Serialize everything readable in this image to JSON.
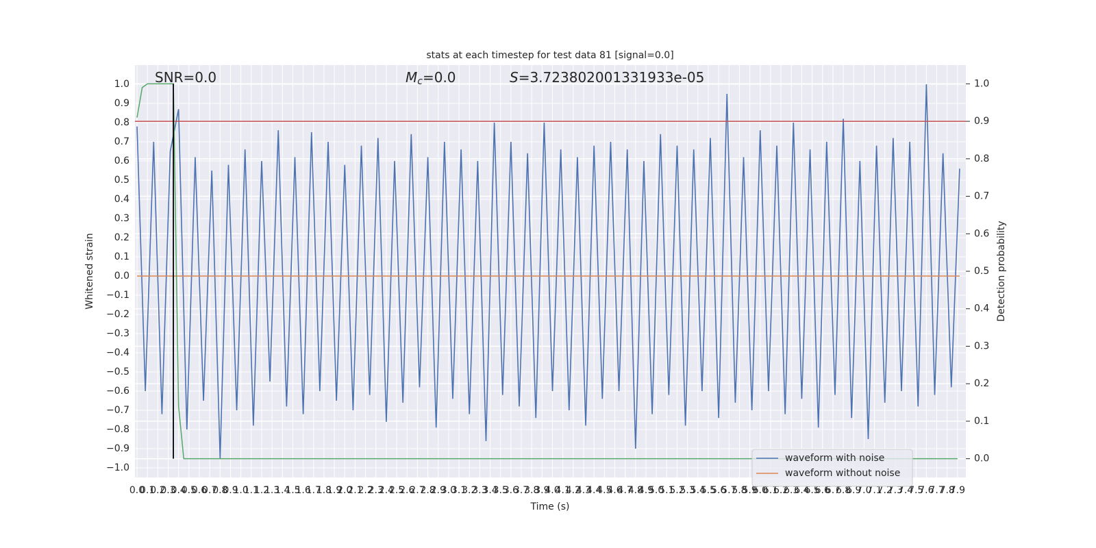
{
  "chart_data": {
    "type": "line",
    "title": "stats at each timestep for test data 81 [signal=0.0]",
    "xlabel": "Time (s)",
    "ylabel": "Whitened strain",
    "y2label": "Detection probability",
    "annotations": [
      {
        "text": "SNR=0.0"
      },
      {
        "symbol": "M",
        "subscript": "c",
        "text": "=0.0"
      },
      {
        "symbol": "S",
        "text": "=3.723802001331933e-05"
      }
    ],
    "xlim": [
      -0.02,
      7.98
    ],
    "ylim": [
      -1.05,
      1.1
    ],
    "y2lim": [
      -0.05,
      1.05
    ],
    "xticks": [
      {
        "value": 0,
        "label": "0.0"
      },
      0.1,
      0.2,
      0.3,
      0.4,
      0.5,
      0.6,
      0.7,
      0.8,
      0.9,
      {
        "value": 1,
        "label": "1.0"
      },
      1.1,
      1.2,
      1.3,
      1.4,
      1.5,
      1.6,
      1.7,
      1.8,
      1.9,
      {
        "value": 2,
        "label": "2.0"
      },
      2.1,
      2.2,
      2.3,
      2.4,
      2.5,
      2.6,
      2.7,
      2.8,
      2.9,
      {
        "value": 3,
        "label": "3.0"
      },
      3.1,
      3.2,
      3.3,
      3.4,
      3.5,
      3.6,
      3.7,
      3.8,
      3.9,
      {
        "value": 4,
        "label": "4.0"
      },
      4.1,
      4.2,
      4.3,
      4.4,
      4.5,
      4.6,
      4.7,
      4.8,
      4.9,
      {
        "value": 5,
        "label": "5.0"
      },
      5.1,
      5.2,
      5.3,
      5.4,
      5.5,
      5.6,
      5.7,
      5.8,
      5.9,
      {
        "value": 6,
        "label": "6.0"
      },
      6.1,
      6.2,
      6.3,
      6.4,
      6.5,
      6.6,
      6.7,
      6.8,
      6.9,
      {
        "value": 7,
        "label": "7.0"
      },
      7.1,
      7.2,
      7.3,
      7.4,
      7.5,
      7.6,
      7.7,
      7.8,
      7.9
    ],
    "yticks": [
      {
        "value": -1,
        "label": "−1.0"
      },
      {
        "value": -0.9,
        "label": "−0.9"
      },
      {
        "value": -0.8,
        "label": "−0.8"
      },
      {
        "value": -0.7,
        "label": "−0.7"
      },
      {
        "value": -0.6,
        "label": "−0.6"
      },
      {
        "value": -0.5,
        "label": "−0.5"
      },
      {
        "value": -0.4,
        "label": "−0.4"
      },
      {
        "value": -0.3,
        "label": "−0.3"
      },
      {
        "value": -0.2,
        "label": "−0.2"
      },
      {
        "value": -0.1,
        "label": "−0.1"
      },
      {
        "value": 0,
        "label": "0.0"
      },
      0.1,
      0.2,
      0.3,
      0.4,
      0.5,
      0.6,
      0.7,
      0.8,
      0.9,
      {
        "value": 1,
        "label": "1.0"
      }
    ],
    "y2ticks": [
      {
        "value": 0,
        "label": "0.0"
      },
      0.1,
      0.2,
      0.3,
      0.4,
      0.5,
      0.6,
      0.7,
      0.8,
      0.9,
      {
        "value": 1,
        "label": "1.0"
      }
    ],
    "grid": true,
    "legend": "lower right",
    "series": [
      {
        "name": "waveform with noise",
        "color": "#4c72b0",
        "x": [
          0,
          0.08,
          0.16,
          0.24,
          0.32,
          0.4,
          0.48,
          0.56,
          0.64,
          0.72,
          0.8,
          0.88,
          0.96,
          1.04,
          1.12,
          1.2,
          1.28,
          1.36,
          1.44,
          1.52,
          1.6,
          1.68,
          1.76,
          1.84,
          1.92,
          2,
          2.08,
          2.16,
          2.24,
          2.32,
          2.4,
          2.48,
          2.56,
          2.64,
          2.72,
          2.8,
          2.88,
          2.96,
          3.04,
          3.12,
          3.2,
          3.28,
          3.36,
          3.44,
          3.52,
          3.6,
          3.68,
          3.76,
          3.84,
          3.92,
          4,
          4.08,
          4.16,
          4.24,
          4.32,
          4.4,
          4.48,
          4.56,
          4.64,
          4.72,
          4.8,
          4.88,
          4.96,
          5.04,
          5.12,
          5.2,
          5.28,
          5.36,
          5.44,
          5.52,
          5.6,
          5.68,
          5.76,
          5.84,
          5.92,
          6,
          6.08,
          6.16,
          6.24,
          6.32,
          6.4,
          6.48,
          6.56,
          6.64,
          6.72,
          6.8,
          6.88,
          6.96,
          7.04,
          7.12,
          7.2,
          7.28,
          7.36,
          7.44,
          7.52,
          7.6,
          7.68,
          7.76,
          7.84,
          7.92
        ],
        "values": [
          0.78,
          -0.6,
          0.7,
          -0.72,
          0.65,
          0.87,
          -0.8,
          0.62,
          -0.65,
          0.55,
          -0.95,
          0.58,
          -0.7,
          0.66,
          -0.78,
          0.6,
          -0.55,
          0.76,
          -0.68,
          0.62,
          -0.72,
          0.75,
          -0.6,
          0.7,
          -0.65,
          0.58,
          -0.7,
          0.68,
          -0.62,
          0.72,
          -0.76,
          0.6,
          -0.66,
          0.74,
          -0.58,
          0.62,
          -0.79,
          0.7,
          -0.64,
          0.66,
          -0.72,
          0.6,
          -0.86,
          0.8,
          -0.62,
          0.7,
          -0.68,
          0.64,
          -0.74,
          0.8,
          -0.6,
          0.66,
          -0.7,
          0.62,
          -0.78,
          0.68,
          -0.64,
          0.7,
          -0.6,
          0.66,
          -0.9,
          0.6,
          -0.72,
          0.74,
          -0.62,
          0.68,
          -0.78,
          0.66,
          -0.6,
          0.72,
          -0.74,
          0.95,
          -0.66,
          0.62,
          -0.7,
          0.76,
          -0.6,
          0.68,
          -0.72,
          0.8,
          -0.64,
          0.66,
          -0.79,
          0.7,
          -0.62,
          0.82,
          -0.74,
          0.6,
          -0.85,
          0.68,
          -0.66,
          0.72,
          -0.6,
          0.7,
          -0.68,
          1.0,
          -0.62,
          0.64,
          -0.58,
          0.56
        ]
      },
      {
        "name": "waveform without noise",
        "color": "#dd8452",
        "x": [
          0,
          7.92
        ],
        "values": [
          0,
          0
        ]
      },
      {
        "color": "#55a868",
        "axis": "y2",
        "x": [
          0,
          0.05,
          0.1,
          0.15,
          0.2,
          0.25,
          0.3,
          0.35,
          0.4,
          0.45,
          7.9
        ],
        "values": [
          0.91,
          0.99,
          1.0,
          1.0,
          1.0,
          1.0,
          1.0,
          1.0,
          0.14,
          0.0,
          0.0
        ]
      }
    ],
    "hlines": [
      {
        "value": 0.9,
        "axis": "y2",
        "color": "#c44e52"
      }
    ],
    "vlines": [
      {
        "value": 0.35,
        "from": 0,
        "to": 1,
        "axis": "y2",
        "color": "#000000"
      }
    ]
  }
}
